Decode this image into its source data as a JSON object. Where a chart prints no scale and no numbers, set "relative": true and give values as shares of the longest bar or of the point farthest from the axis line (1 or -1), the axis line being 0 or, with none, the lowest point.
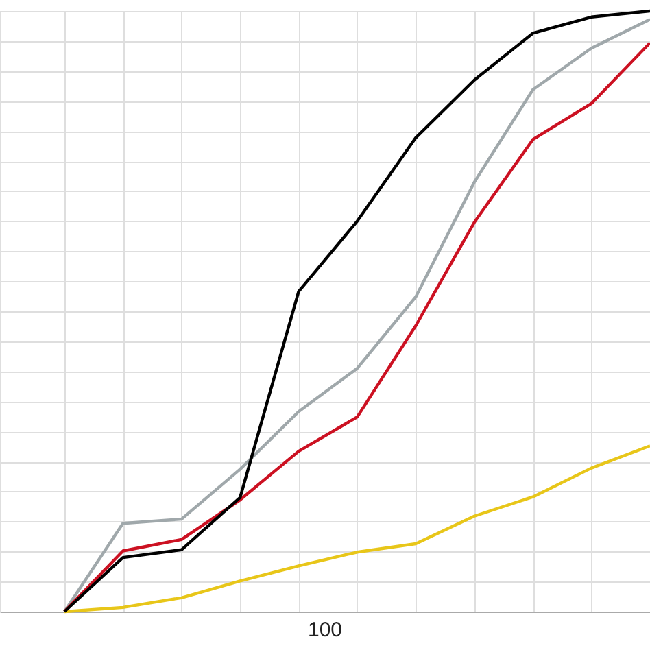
{
  "chart_data": {
    "type": "line",
    "relative": true,
    "categories": [
      null,
      null,
      null,
      null,
      null,
      null,
      null,
      null,
      null,
      null,
      null
    ],
    "annotations": [
      "100"
    ],
    "grid": true,
    "line_style": "solid",
    "marker": "none",
    "series": [
      {
        "color": "#a0a8ab",
        "values": [
          0,
          0.147,
          0.154,
          0.237,
          0.333,
          0.405,
          0.524,
          0.715,
          0.869,
          0.938,
          0.986
        ]
      },
      {
        "color": "#cc1122",
        "values": [
          0,
          0.101,
          0.12,
          0.186,
          0.267,
          0.324,
          0.476,
          0.648,
          0.786,
          0.846,
          0.947
        ]
      },
      {
        "color": "#e8c619",
        "values": [
          0,
          0.007,
          0.023,
          0.051,
          0.076,
          0.099,
          0.113,
          0.159,
          0.191,
          0.239,
          0.276
        ]
      },
      {
        "color": "#000000",
        "values": [
          0,
          0.09,
          0.103,
          0.19,
          0.533,
          0.65,
          0.789,
          0.885,
          0.963,
          0.99,
          1
        ]
      }
    ]
  }
}
